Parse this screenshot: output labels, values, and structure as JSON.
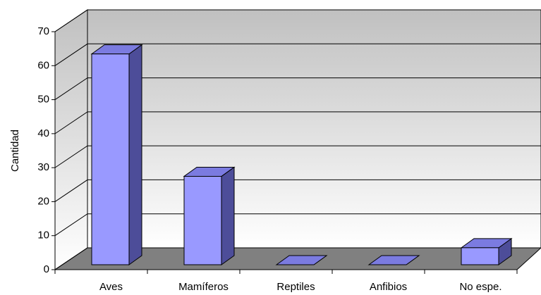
{
  "chart_data": {
    "type": "bar",
    "y_label": "Cantidad",
    "categories": [
      "Aves",
      "Mamíferos",
      "Reptiles",
      "Anfibios",
      "No espe."
    ],
    "values": [
      62,
      26,
      0,
      0,
      5
    ],
    "color": "#9999ff",
    "ylim": [
      0,
      70
    ],
    "yticks": [
      0,
      10,
      20,
      30,
      40,
      50,
      60,
      70
    ],
    "grid": true
  }
}
